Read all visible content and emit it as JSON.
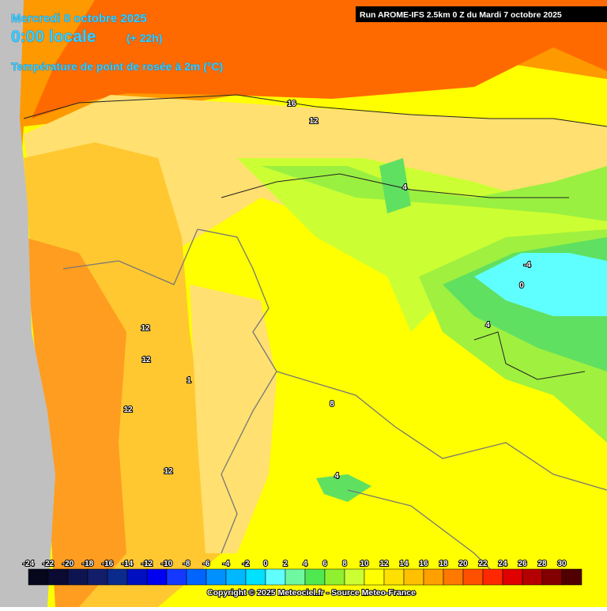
{
  "header": {
    "date": "Mercredi 8 octobre 2025",
    "time": "0:00 locale",
    "offset": "(+ 22h)",
    "variable": "Température de point de rosée à 2m (°C)",
    "run": "Run AROME-IFS 2.5km 0 Z du Mardi 7 octobre 2025"
  },
  "colorbar": {
    "ticks": [
      -24,
      -22,
      -20,
      -18,
      -16,
      -14,
      -12,
      -10,
      -8,
      -6,
      -4,
      -2,
      0,
      2,
      4,
      6,
      8,
      10,
      12,
      14,
      16,
      18,
      20,
      22,
      24,
      26,
      28,
      30
    ],
    "colors": [
      "#06061c",
      "#0a0a32",
      "#0e1450",
      "#121e6a",
      "#0a2a8c",
      "#0010c0",
      "#0000f0",
      "#1438ff",
      "#0064ff",
      "#0090ff",
      "#00b8ff",
      "#00e0ff",
      "#60ffff",
      "#70f8a0",
      "#50e850",
      "#90f030",
      "#ccff33",
      "#ffff00",
      "#ffe000",
      "#ffc000",
      "#ffa000",
      "#ff7800",
      "#ff5000",
      "#ff2800",
      "#e00000",
      "#b40000",
      "#820000",
      "#500000"
    ]
  },
  "contour_labels": [
    "16",
    "12",
    "4",
    "-4",
    "0",
    "4",
    "12",
    "12",
    "1",
    "12",
    "8",
    "12",
    "4"
  ],
  "copyright": "Copyright © 2025 Meteociel.fr - Source Meteo-France"
}
